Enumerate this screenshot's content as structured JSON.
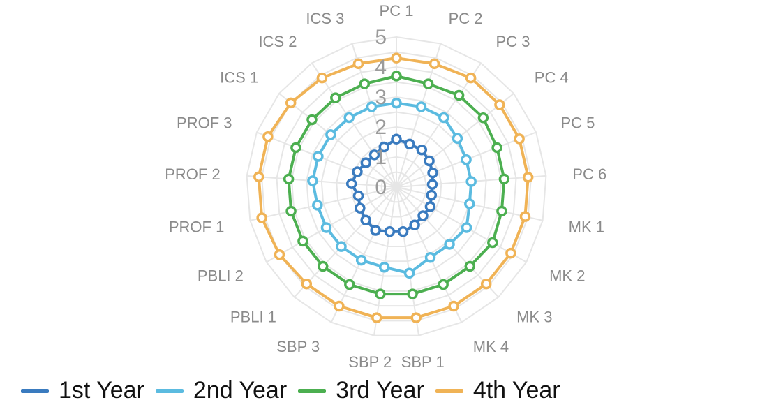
{
  "chart_data": {
    "type": "radar",
    "categories": [
      "PC 1",
      "PC 2",
      "PC 3",
      "PC 4",
      "PC 5",
      "PC 6",
      "MK 1",
      "MK 2",
      "MK 3",
      "MK 4",
      "SBP 1",
      "SBP 2",
      "SBP 3",
      "PBLI 1",
      "PBLI 2",
      "PROF 1",
      "PROF 2",
      "PROF 3",
      "ICS 1",
      "ICS 2",
      "ICS 3"
    ],
    "rlim": [
      0,
      5
    ],
    "ticks": [
      "0",
      "1",
      "2",
      "3",
      "4",
      "5"
    ],
    "grid": true,
    "legend_position": "bottom",
    "series": [
      {
        "name": "1st Year",
        "color": "#3a7bbf",
        "values": [
          1.6,
          1.5,
          1.5,
          1.4,
          1.3,
          1.2,
          1.2,
          1.3,
          1.3,
          1.4,
          1.5,
          1.5,
          1.6,
          1.5,
          1.4,
          1.3,
          1.5,
          1.4,
          1.3,
          1.3,
          1.4
        ]
      },
      {
        "name": "2nd Year",
        "color": "#5bbbe0",
        "values": [
          2.8,
          2.8,
          2.8,
          2.6,
          2.5,
          2.5,
          2.5,
          2.7,
          2.6,
          2.6,
          2.9,
          2.7,
          2.7,
          2.7,
          2.7,
          2.7,
          2.8,
          2.8,
          2.8,
          2.8,
          2.8
        ]
      },
      {
        "name": "3rd Year",
        "color": "#4caf50",
        "values": [
          3.7,
          3.6,
          3.7,
          3.7,
          3.6,
          3.6,
          3.6,
          3.7,
          3.6,
          3.6,
          3.6,
          3.6,
          3.6,
          3.6,
          3.6,
          3.6,
          3.6,
          3.6,
          3.6,
          3.6,
          3.6
        ]
      },
      {
        "name": "4th Year",
        "color": "#f0b356",
        "values": [
          4.3,
          4.3,
          4.4,
          4.4,
          4.4,
          4.4,
          4.4,
          4.4,
          4.4,
          4.4,
          4.4,
          4.4,
          4.4,
          4.4,
          4.5,
          4.6,
          4.6,
          4.6,
          4.5,
          4.4,
          4.3
        ]
      }
    ]
  }
}
